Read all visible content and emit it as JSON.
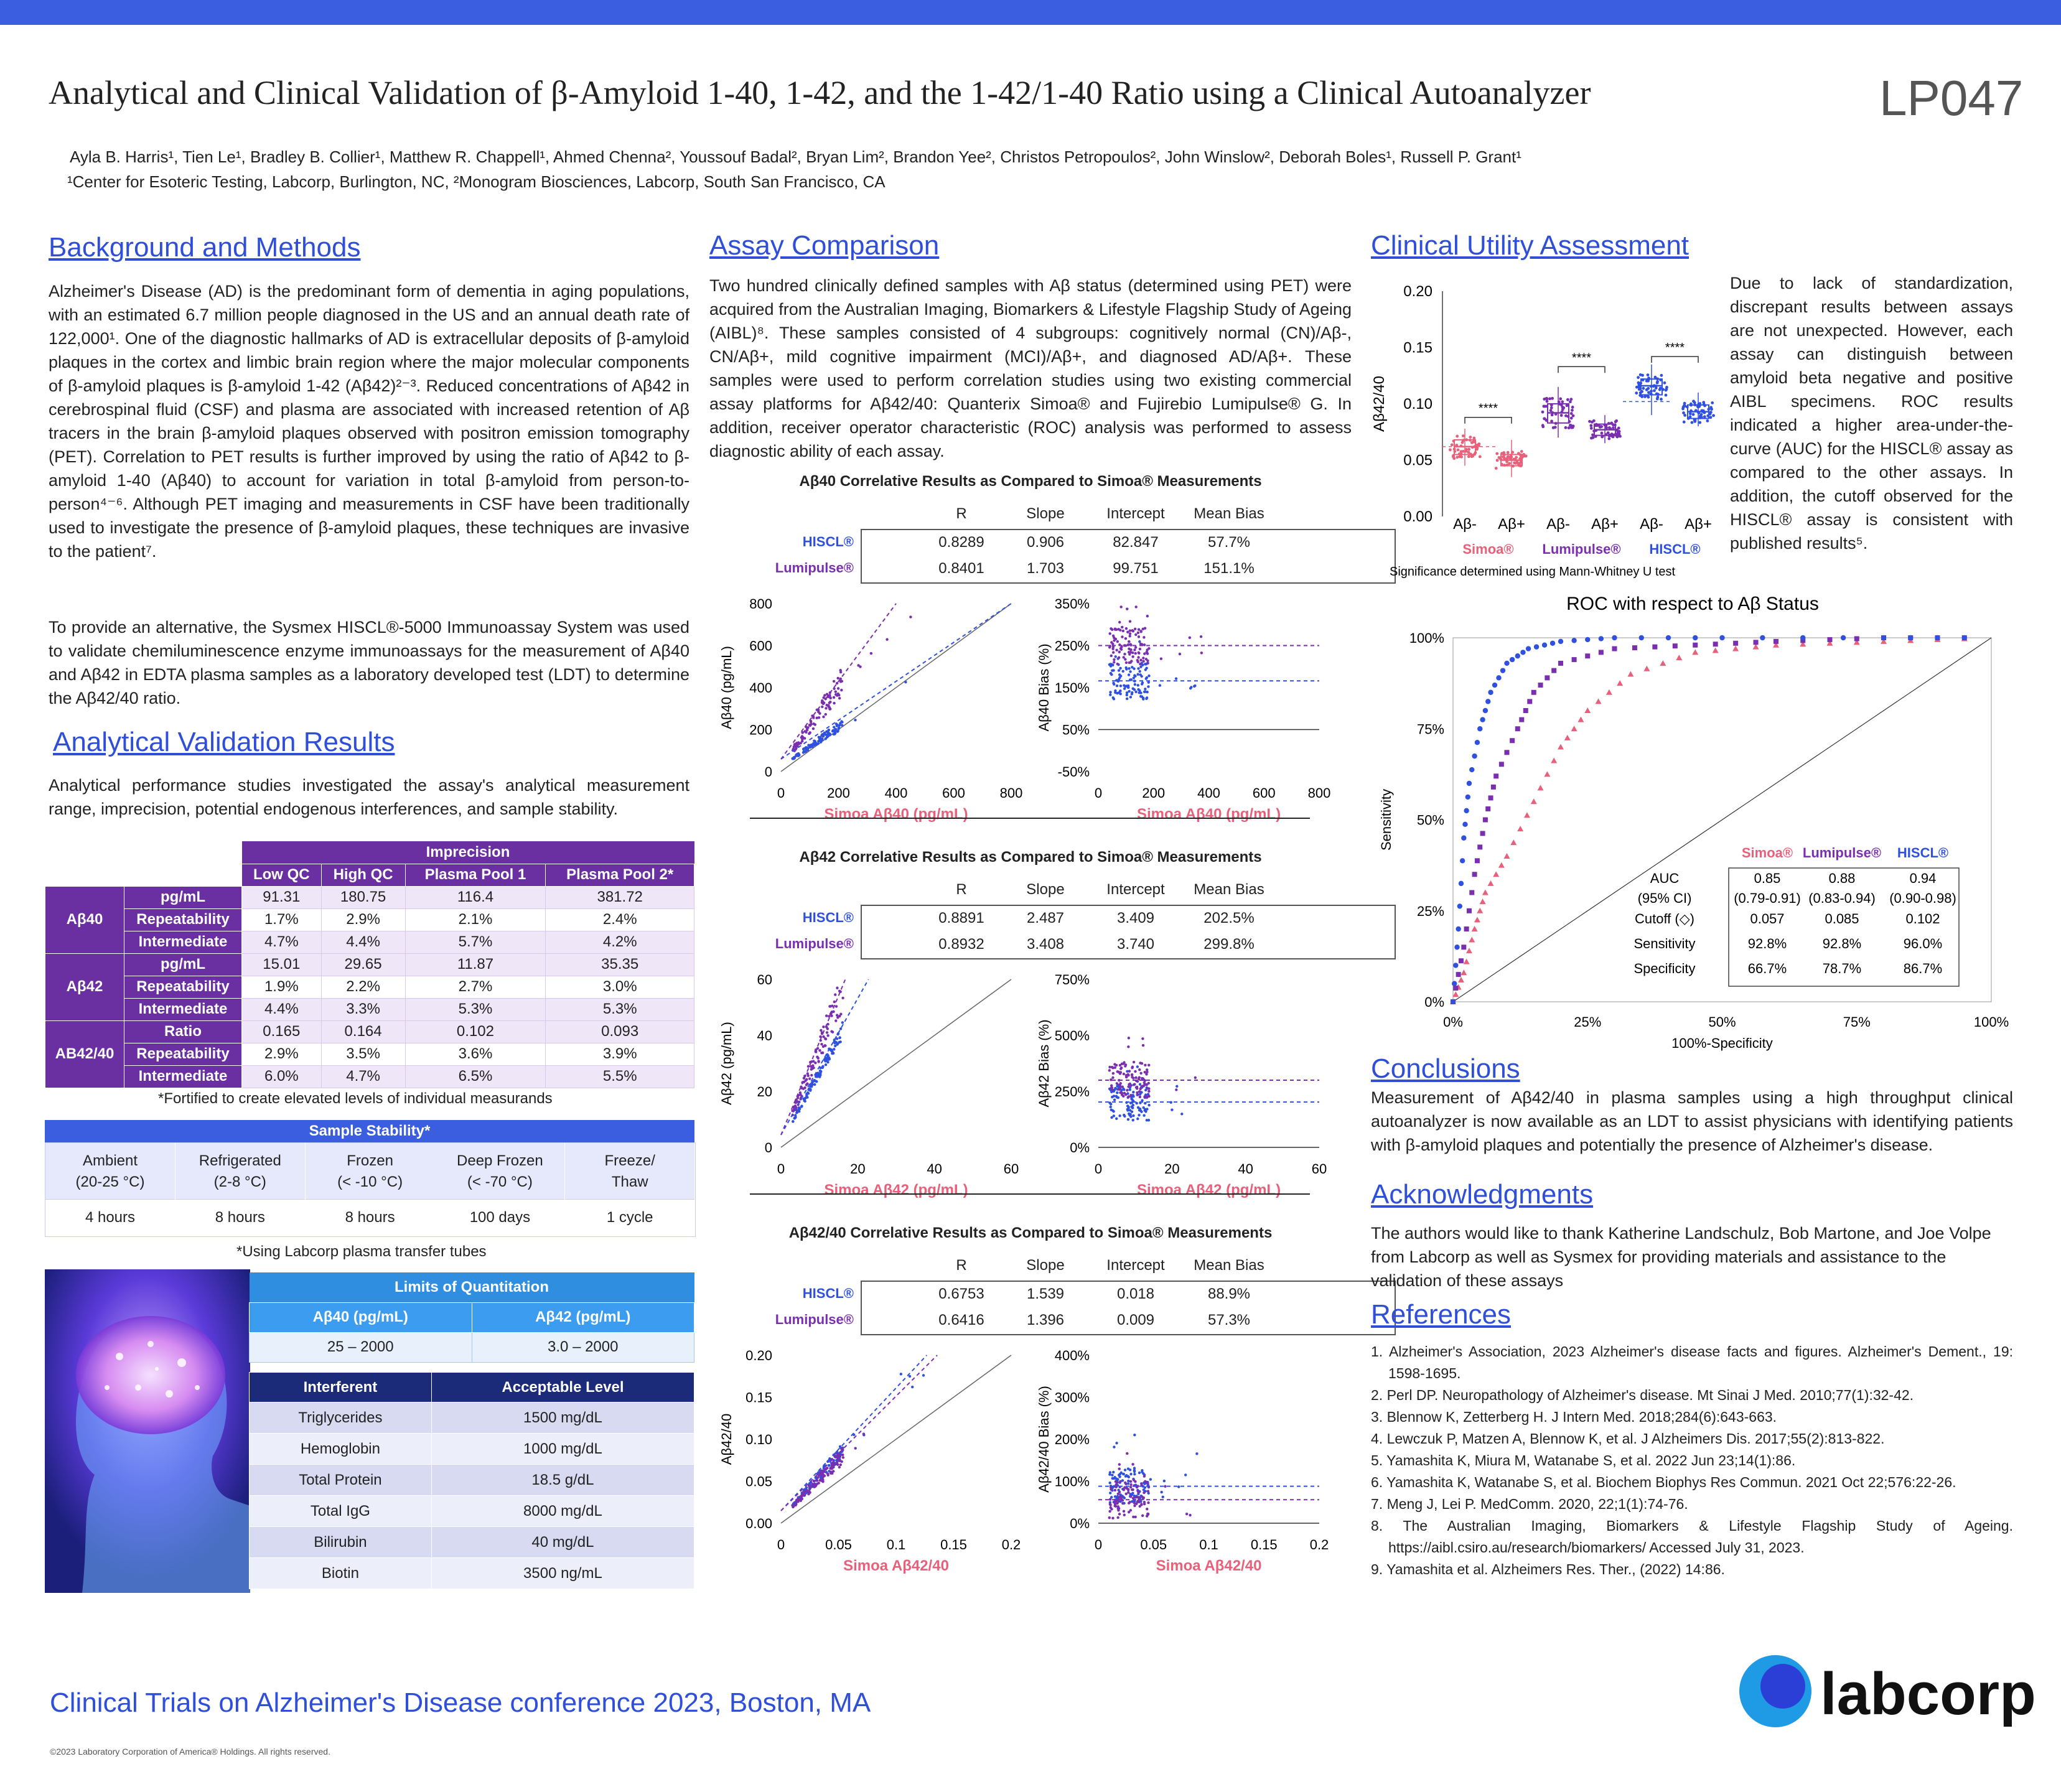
{
  "header": {
    "title": "Analytical and Clinical Validation of β-Amyloid 1-40, 1-42, and the 1-42/1-40 Ratio using a Clinical Autoanalyzer",
    "poster_id": "LP047",
    "authors": "Ayla B. Harris¹, Tien Le¹, Bradley B. Collier¹, Matthew R. Chappell¹, Ahmed Chenna², Youssouf Badal², Bryan Lim², Brandon Yee², Christos Petropoulos², John Winslow², Deborah Boles¹, Russell P. Grant¹",
    "affiliations": "¹Center for Esoteric Testing, Labcorp, Burlington, NC, ²Monogram Biosciences, Labcorp, South San Francisco, CA"
  },
  "background": {
    "heading": "Background and Methods",
    "p1": "Alzheimer's Disease (AD) is the predominant form of dementia in aging populations, with an estimated 6.7 million people diagnosed in the US and an annual death rate of 122,000¹. One of the diagnostic hallmarks of AD is extracellular deposits of β-amyloid plaques in the cortex and limbic brain region where the major molecular components of β-amyloid plaques is β-amyloid 1-42 (Aβ42)²⁻³. Reduced concentrations of Aβ42 in cerebrospinal fluid (CSF) and plasma are associated with increased retention of Aβ tracers in the brain β-amyloid plaques observed with positron emission tomography (PET). Correlation to PET results is further improved by using the ratio of Aβ42 to β-amyloid 1-40 (Aβ40) to account for variation in total β-amyloid from person-to-person⁴⁻⁶. Although PET imaging and measurements in CSF have been traditionally used to investigate the presence of β-amyloid plaques, these techniques are invasive to the patient⁷.",
    "p2": "To provide an alternative, the Sysmex HISCL®-5000 Immunoassay System was used to validate chemiluminescence enzyme immunoassays for the measurement of Aβ40 and Aβ42 in EDTA plasma samples as a laboratory developed test (LDT) to determine the Aβ42/40 ratio."
  },
  "analytical": {
    "heading": "Analytical Validation Results",
    "p": "Analytical performance studies investigated the assay's analytical measurement range, imprecision, potential endogenous interferences, and sample stability.",
    "imprecision_title": "Imprecision",
    "columns": [
      "Low QC",
      "High QC",
      "Plasma Pool 1",
      "Plasma Pool 2*"
    ],
    "groups": [
      {
        "name": "Aβ40",
        "rows": [
          {
            "label": "pg/mL",
            "values": [
              "91.31",
              "180.75",
              "116.4",
              "381.72"
            ]
          },
          {
            "label": "Repeatability",
            "values": [
              "1.7%",
              "2.9%",
              "2.1%",
              "2.4%"
            ]
          },
          {
            "label": "Intermediate",
            "values": [
              "4.7%",
              "4.4%",
              "5.7%",
              "4.2%"
            ]
          }
        ]
      },
      {
        "name": "Aβ42",
        "rows": [
          {
            "label": "pg/mL",
            "values": [
              "15.01",
              "29.65",
              "11.87",
              "35.35"
            ]
          },
          {
            "label": "Repeatability",
            "values": [
              "1.9%",
              "2.2%",
              "2.7%",
              "3.0%"
            ]
          },
          {
            "label": "Intermediate",
            "values": [
              "4.4%",
              "3.3%",
              "5.3%",
              "5.3%"
            ]
          }
        ]
      },
      {
        "name": "AB42/40",
        "rows": [
          {
            "label": "Ratio",
            "values": [
              "0.165",
              "0.164",
              "0.102",
              "0.093"
            ]
          },
          {
            "label": "Repeatability",
            "values": [
              "2.9%",
              "3.5%",
              "3.6%",
              "3.9%"
            ]
          },
          {
            "label": "Intermediate",
            "values": [
              "6.0%",
              "4.7%",
              "6.5%",
              "5.5%"
            ]
          }
        ]
      }
    ],
    "imprecision_note": "*Fortified to create elevated levels of individual measurands",
    "stability": {
      "title": "Sample Stability*",
      "headers": [
        [
          "Ambient",
          "(20-25 °C)"
        ],
        [
          "Refrigerated",
          "(2-8 °C)"
        ],
        [
          "Frozen",
          "(< -10 °C)"
        ],
        [
          "Deep Frozen",
          "(< -70 °C)"
        ],
        [
          "Freeze/",
          "Thaw"
        ]
      ],
      "values": [
        "4 hours",
        "8 hours",
        "8 hours",
        "100 days",
        "1 cycle"
      ],
      "note": "*Using Labcorp plasma transfer tubes"
    },
    "loq": {
      "title": "Limits of Quantitation",
      "headers": [
        "Aβ40 (pg/mL)",
        "Aβ42 (pg/mL)"
      ],
      "values": [
        "25 – 2000",
        "3.0 – 2000"
      ]
    },
    "interference": {
      "headers": [
        "Interferent",
        "Acceptable Level"
      ],
      "rows": [
        [
          "Triglycerides",
          "1500 mg/dL"
        ],
        [
          "Hemoglobin",
          "1000 mg/dL"
        ],
        [
          "Total Protein",
          "18.5 g/dL"
        ],
        [
          "Total IgG",
          "8000 mg/dL"
        ],
        [
          "Bilirubin",
          "40 mg/dL"
        ],
        [
          "Biotin",
          "3500 ng/mL"
        ]
      ]
    }
  },
  "assay": {
    "heading": "Assay Comparison",
    "p": "Two hundred clinically defined samples with Aβ status (determined using PET) were acquired from the Australian Imaging, Biomarkers & Lifestyle Flagship Study of Ageing (AIBL)⁸. These samples consisted of 4 subgroups: cognitively normal (CN)/Aβ-, CN/Aβ+, mild cognitive impairment (MCI)/Aβ+, and diagnosed AD/Aβ+. These samples were used to perform correlation studies using two existing commercial assay platforms for Aβ42/40: Quanterix Simoa® and Fujirebio Lumipulse® G. In addition, receiver operator characteristic (ROC) analysis was performed to assess diagnostic ability of each assay.",
    "corr_headers": [
      "R",
      "Slope",
      "Intercept",
      "Mean Bias"
    ],
    "blocks": [
      {
        "title": "Aβ40 Correlative Results as Compared to Simoa® Measurements",
        "rows": [
          {
            "name": "HISCL®",
            "values": [
              "0.8289",
              "0.906",
              "82.847",
              "57.7%"
            ]
          },
          {
            "name": "Lumipulse®",
            "values": [
              "0.8401",
              "1.703",
              "99.751",
              "151.1%"
            ]
          }
        ],
        "scatter": {
          "xlabel": "Simoa Aβ40 (pg/mL)",
          "ylabel": "Aβ40 (pg/mL)",
          "xticks": [
            "0",
            "200",
            "400",
            "600",
            "800"
          ],
          "yticks": [
            "0",
            "200",
            "400",
            "600",
            "800"
          ]
        },
        "bias": {
          "xlabel": "Simoa Aβ40 (pg/mL)",
          "ylabel": "Aβ40 Bias (%)",
          "xticks": [
            "0",
            "200",
            "400",
            "600",
            "800"
          ],
          "yticks": [
            "-50%",
            "50%",
            "150%",
            "250%",
            "350%"
          ]
        }
      },
      {
        "title": "Aβ42 Correlative Results as Compared to Simoa® Measurements",
        "rows": [
          {
            "name": "HISCL®",
            "values": [
              "0.8891",
              "2.487",
              "3.409",
              "202.5%"
            ]
          },
          {
            "name": "Lumipulse®",
            "values": [
              "0.8932",
              "3.408",
              "3.740",
              "299.8%"
            ]
          }
        ],
        "scatter": {
          "xlabel": "Simoa Aβ42 (pg/mL)",
          "ylabel": "Aβ42 (pg/mL)",
          "xticks": [
            "0",
            "20",
            "40",
            "60"
          ],
          "yticks": [
            "0",
            "20",
            "40",
            "60"
          ]
        },
        "bias": {
          "xlabel": "Simoa Aβ42 (pg/mL)",
          "ylabel": "Aβ42 Bias (%)",
          "xticks": [
            "0",
            "20",
            "40",
            "60"
          ],
          "yticks": [
            "0%",
            "250%",
            "500%",
            "750%"
          ]
        }
      },
      {
        "title": "Aβ42/40 Correlative Results as Compared to Simoa® Measurements",
        "rows": [
          {
            "name": "HISCL®",
            "values": [
              "0.6753",
              "1.539",
              "0.018",
              "88.9%"
            ]
          },
          {
            "name": "Lumipulse®",
            "values": [
              "0.6416",
              "1.396",
              "0.009",
              "57.3%"
            ]
          }
        ],
        "scatter": {
          "xlabel": "Simoa Aβ42/40",
          "ylabel": "Aβ42/40",
          "xticks": [
            "0",
            "0.05",
            "0.1",
            "0.15",
            "0.2"
          ],
          "yticks": [
            "0.00",
            "0.05",
            "0.10",
            "0.15",
            "0.20"
          ]
        },
        "bias": {
          "xlabel": "Simoa Aβ42/40",
          "ylabel": "Aβ42/40 Bias (%)",
          "xticks": [
            "0",
            "0.05",
            "0.1",
            "0.15",
            "0.2"
          ],
          "yticks": [
            "0%",
            "100%",
            "200%",
            "300%",
            "400%"
          ]
        }
      }
    ]
  },
  "clinical": {
    "heading": "Clinical Utility Assessment",
    "p": "Due to lack of standardization, discrepant results between assays are not unexpected. However, each assay can distinguish between amyloid beta negative and positive AIBL specimens. ROC results indicated a higher area-under-the-curve (AUC) for the HISCL® assay as compared to the other assays. In addition, the cutoff observed for the HISCL® assay is consistent with published results⁵.",
    "boxplot": {
      "ylabel": "Aβ42/40",
      "yticks": [
        "0.00",
        "0.05",
        "0.10",
        "0.15",
        "0.20"
      ],
      "groups": [
        "Aβ-",
        "Aβ+",
        "Aβ-",
        "Aβ+",
        "Aβ-",
        "Aβ+"
      ],
      "assays": [
        "Simoa®",
        "Lumipulse®",
        "HISCL®"
      ],
      "sig": "****",
      "note": "Significance determined using Mann-Whitney U test"
    },
    "roc": {
      "title": "ROC with respect to Aβ Status",
      "xlabel": "100%-Specificity",
      "ylabel": "Sensitivity",
      "xticks": [
        "0%",
        "25%",
        "50%",
        "75%",
        "100%"
      ],
      "yticks": [
        "0%",
        "25%",
        "50%",
        "75%",
        "100%"
      ],
      "table": {
        "headers": [
          "Simoa®",
          "Lumipulse®",
          "HISCL®"
        ],
        "rows": [
          {
            "label": "AUC\n(95% CI)",
            "values": [
              "0.85\n(0.79-0.91)",
              "0.88\n(0.83-0.94)",
              "0.94\n(0.90-0.98)"
            ]
          },
          {
            "label": "Cutoff (◇)",
            "values": [
              "0.057",
              "0.085",
              "0.102"
            ]
          },
          {
            "label": "Sensitivity",
            "values": [
              "92.8%",
              "92.8%",
              "96.0%"
            ]
          },
          {
            "label": "Specificity",
            "values": [
              "66.7%",
              "78.7%",
              "86.7%"
            ]
          }
        ]
      }
    }
  },
  "chart_data": [
    {
      "type": "boxplot",
      "title": "",
      "ylabel": "Aβ42/40",
      "ylim": [
        0,
        0.2
      ],
      "categories": [
        "Simoa Aβ-",
        "Simoa Aβ+",
        "Lumipulse Aβ-",
        "Lumipulse Aβ+",
        "HISCL Aβ-",
        "HISCL Aβ+"
      ],
      "medians": [
        0.062,
        0.05,
        0.092,
        0.077,
        0.116,
        0.093
      ],
      "q1": [
        0.055,
        0.045,
        0.083,
        0.072,
        0.108,
        0.087
      ],
      "q3": [
        0.068,
        0.055,
        0.1,
        0.082,
        0.122,
        0.099
      ],
      "min": [
        0.045,
        0.035,
        0.07,
        0.065,
        0.09,
        0.08
      ],
      "max": [
        0.078,
        0.068,
        0.115,
        0.09,
        0.135,
        0.11
      ]
    },
    {
      "type": "line",
      "title": "ROC with respect to Aβ Status",
      "xlabel": "100%-Specificity",
      "ylabel": "Sensitivity",
      "series": [
        {
          "name": "Simoa®",
          "x": [
            0,
            0.02,
            0.04,
            0.06,
            0.1,
            0.15,
            0.2,
            0.25,
            0.33,
            0.45,
            0.6,
            0.8,
            1.0
          ],
          "y": [
            0,
            0.08,
            0.2,
            0.3,
            0.4,
            0.55,
            0.7,
            0.8,
            0.9,
            0.96,
            0.98,
            0.99,
            1.0
          ]
        },
        {
          "name": "Lumipulse®",
          "x": [
            0,
            0.02,
            0.04,
            0.06,
            0.08,
            0.12,
            0.15,
            0.2,
            0.3,
            0.45,
            0.6,
            0.8,
            1.0
          ],
          "y": [
            0,
            0.15,
            0.35,
            0.5,
            0.62,
            0.75,
            0.85,
            0.93,
            0.97,
            0.98,
            0.99,
            1.0,
            1.0
          ]
        },
        {
          "name": "HISCL®",
          "x": [
            0,
            0.01,
            0.02,
            0.03,
            0.05,
            0.07,
            0.1,
            0.14,
            0.2,
            0.3,
            0.5,
            0.8,
            1.0
          ],
          "y": [
            0,
            0.2,
            0.45,
            0.6,
            0.75,
            0.85,
            0.93,
            0.97,
            0.99,
            1.0,
            1.0,
            1.0,
            1.0
          ]
        }
      ]
    }
  ],
  "conclusions": {
    "heading": "Conclusions",
    "p": "Measurement of Aβ42/40 in plasma samples using a high throughput clinical autoanalyzer is now available as an LDT to assist physicians with identifying patients with β-amyloid plaques and potentially the presence of Alzheimer's disease."
  },
  "acknowledgments": {
    "heading": "Acknowledgments",
    "p": "The authors would like to thank Katherine Landschulz, Bob Martone, and Joe Volpe from Labcorp as well as Sysmex for providing materials and assistance to the validation of these assays"
  },
  "references": {
    "heading": "References",
    "items": [
      "1. Alzheimer's Association, 2023 Alzheimer's disease facts and figures. Alzheimer's Dement., 19: 1598-1695.",
      "2. Perl DP. Neuropathology of Alzheimer's disease. Mt Sinai J Med. 2010;77(1):32-42.",
      "3. Blennow K, Zetterberg H. J Intern Med. 2018;284(6):643-663.",
      "4. Lewczuk P, Matzen A, Blennow K, et al. J Alzheimers Dis. 2017;55(2):813-822.",
      "5. Yamashita K, Miura M, Watanabe S, et al. 2022 Jun 23;14(1):86.",
      "6. Yamashita K, Watanabe S, et al. Biochem Biophys Res Commun. 2021 Oct 22;576:22-26.",
      "7. Meng J, Lei P. MedComm. 2020, 22;1(1):74-76.",
      "8. The Australian Imaging, Biomarkers & Lifestyle Flagship Study of Ageing. https://aibl.csiro.au/research/biomarkers/ Accessed July 31, 2023.",
      "9. Yamashita et al. Alzheimers Res. Ther., (2022) 14:86."
    ]
  },
  "footer": {
    "conference": "Clinical Trials on Alzheimer's Disease conference 2023, Boston, MA",
    "copyright": "©2023 Laboratory Corporation of America® Holdings. All rights reserved.",
    "logo": "labcorp"
  },
  "colors": {
    "accent": "#2f4fd8",
    "purple": "#6a2fa0",
    "pink": "#e8607a",
    "blue": "#3050e0",
    "violet": "#7a2fb0"
  }
}
